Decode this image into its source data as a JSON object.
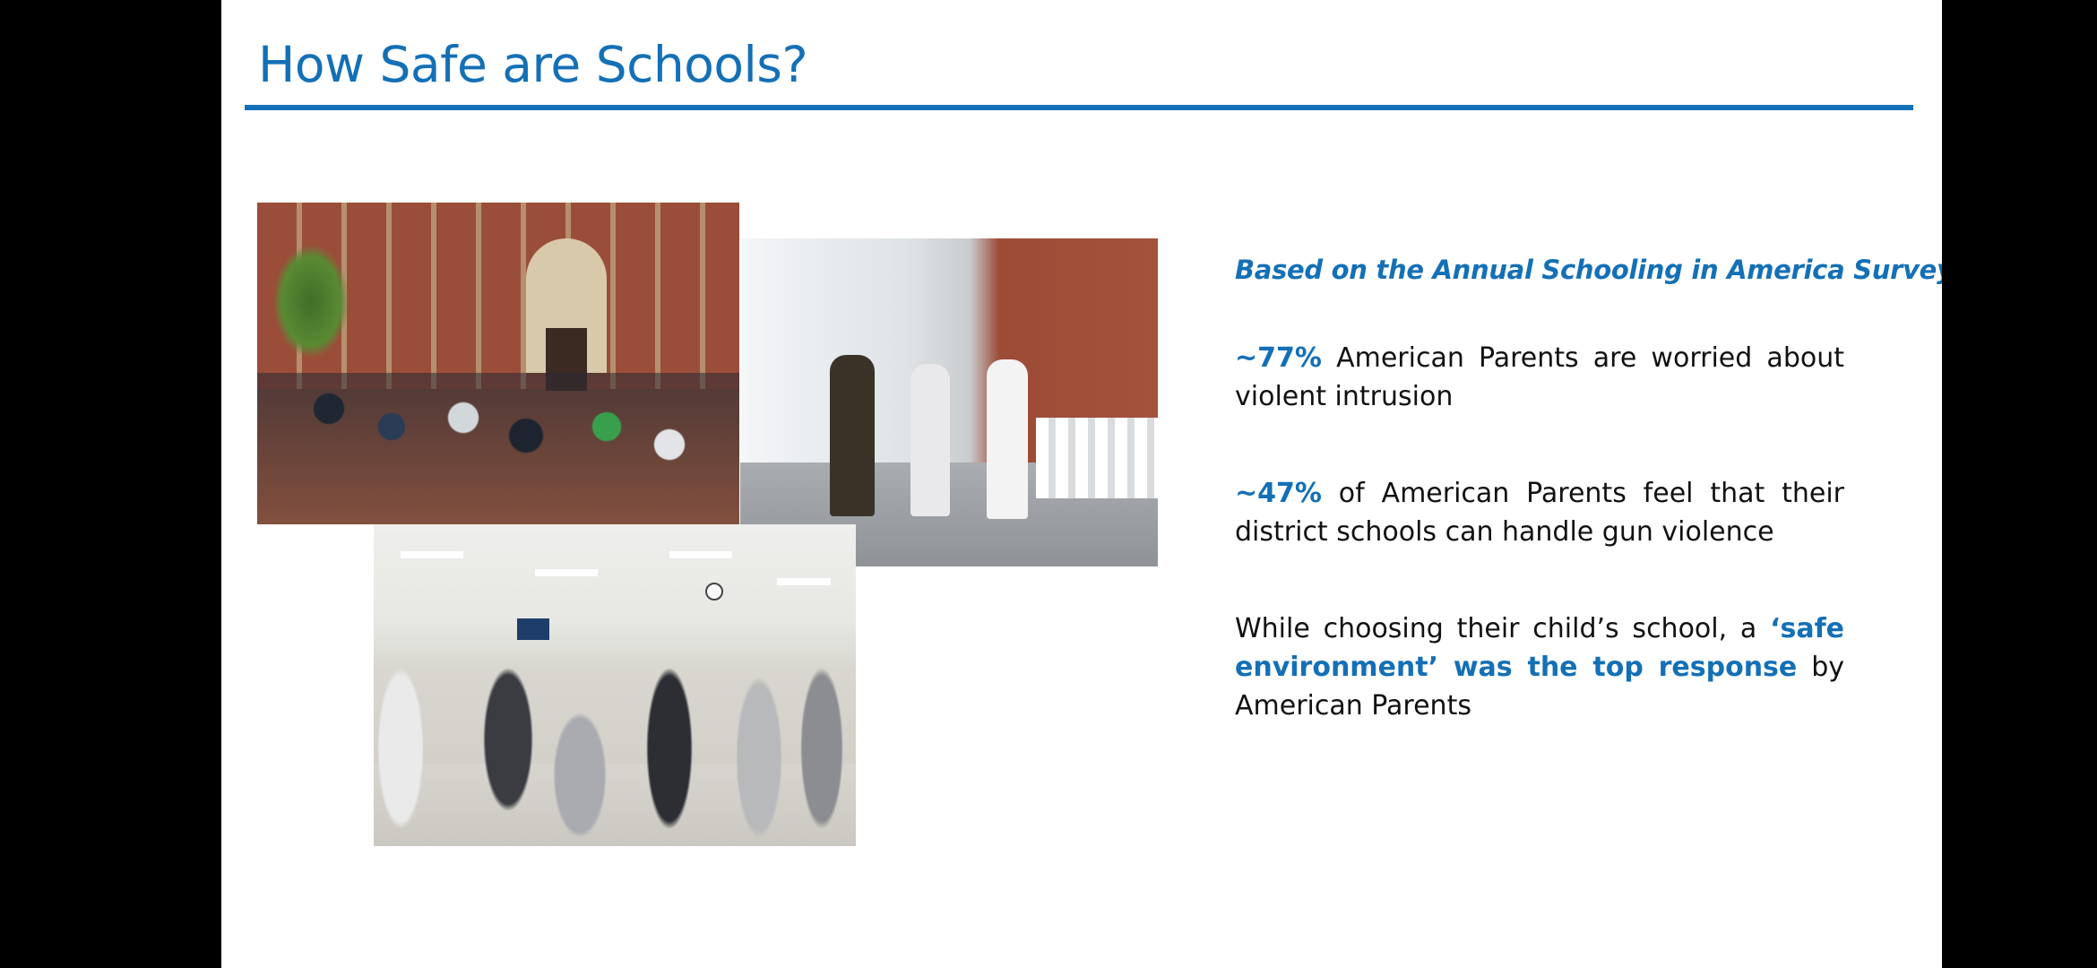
{
  "slide": {
    "title": "How Safe are Schools?",
    "colors": {
      "accent": "#1470b6",
      "body_text": "#111111",
      "background": "#ffffff",
      "viewer_background": "#000000"
    }
  },
  "images": [
    {
      "name": "school-exterior-crowd-photo"
    },
    {
      "name": "school-hallway-officer-photo"
    },
    {
      "name": "school-cafeteria-students-photo"
    }
  ],
  "content": {
    "survey_heading": "Based on the Annual Schooling in America Survey:",
    "stat1": {
      "highlight": "~77%",
      "text": " American Parents are worried about violent intrusion"
    },
    "stat2": {
      "highlight": "~47%",
      "text": " of American Parents feel that their district schools can handle gun violence"
    },
    "stat3": {
      "prefix": "While choosing their child’s school, a ",
      "highlight": "‘safe environment’ was the top response",
      "suffix": " by American Parents"
    }
  }
}
